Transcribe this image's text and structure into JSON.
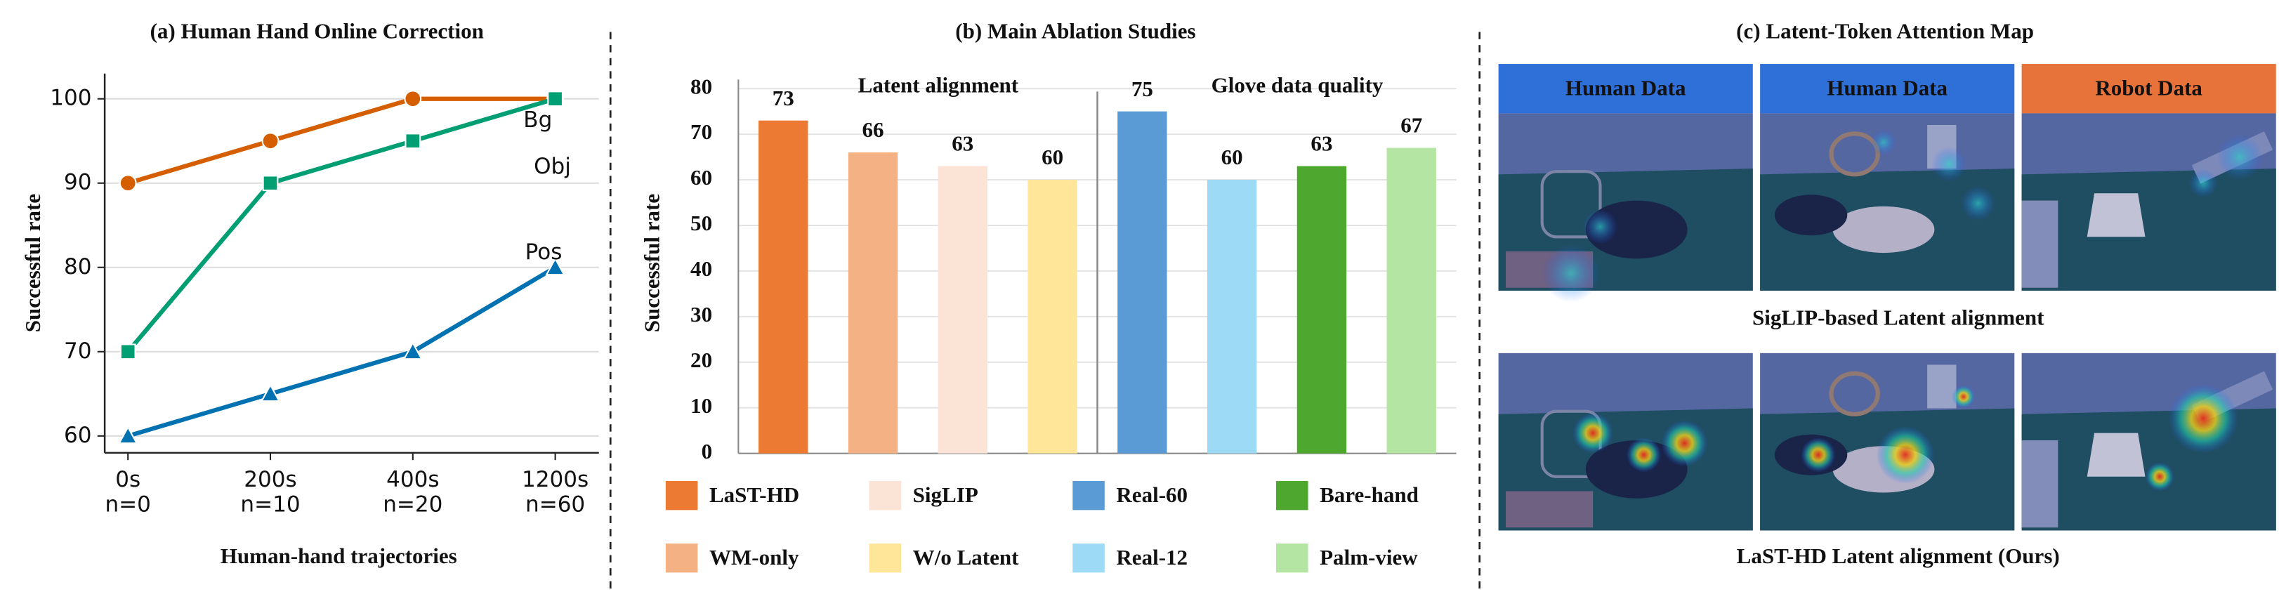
{
  "chart_data": [
    {
      "type": "line",
      "title": "(a) Human Hand Online Correction",
      "x_label": "Human-hand trajectories",
      "y_label": "Successful rate",
      "categories": [
        "0s",
        "200s",
        "400s",
        "1200s"
      ],
      "category_sublabels": [
        "n=0",
        "n=10",
        "n=20",
        "n=60"
      ],
      "series": [
        {
          "name": "Bg",
          "color": "#d55e00",
          "marker": "circle",
          "values": [
            90,
            95,
            100,
            100
          ]
        },
        {
          "name": "Obj",
          "color": "#009e73",
          "marker": "square",
          "values": [
            70,
            90,
            95,
            100
          ]
        },
        {
          "name": "Pos",
          "color": "#0072b2",
          "marker": "triangle",
          "values": [
            60,
            65,
            70,
            80
          ]
        }
      ],
      "ylim": [
        58,
        103
      ],
      "yticks": [
        60,
        70,
        80,
        90,
        100
      ],
      "grid": true
    },
    {
      "type": "bar",
      "title": "(b) Main Ablation Studies",
      "y_label": "Successful rate",
      "groups": [
        "Latent alignment",
        "Glove data quality"
      ],
      "categories": [
        "LaST-HD",
        "WM-only",
        "SigLIP",
        "W/o Latent",
        "Real-60",
        "Real-12",
        "Bare-hand",
        "Palm-view"
      ],
      "values": [
        73,
        66,
        63,
        60,
        75,
        60,
        63,
        67
      ],
      "colors": [
        "#ec7a32",
        "#f3b184",
        "#fbe3d5",
        "#ffe699",
        "#5b9bd5",
        "#9ddaf6",
        "#4ea72e",
        "#b4e5a2"
      ],
      "ylim": [
        0,
        82
      ],
      "yticks": [
        0,
        10,
        20,
        30,
        40,
        50,
        60,
        70,
        80
      ],
      "grid": true
    }
  ],
  "panel_c": {
    "title": "(c) Latent-Token Attention Map",
    "headers": [
      "Human Data",
      "Human Data",
      "Robot Data"
    ],
    "captions": [
      "SigLIP-based Latent alignment",
      "LaST-HD Latent alignment (Ours)"
    ]
  }
}
